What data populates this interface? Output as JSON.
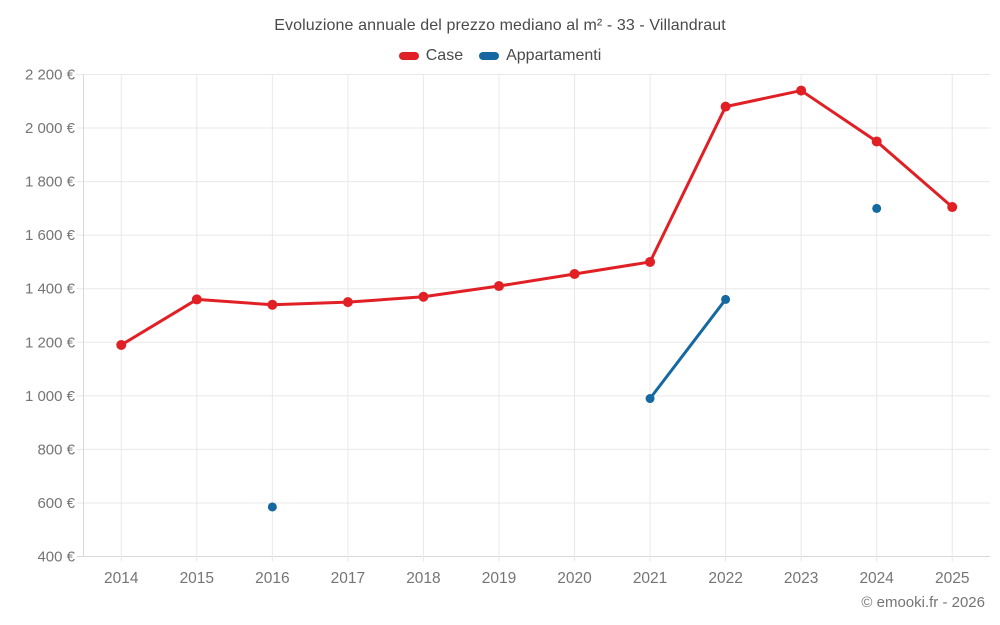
{
  "chart_data": {
    "type": "line",
    "title": "Evoluzione annuale del prezzo mediano al m² - 33 - Villandraut",
    "footer": "© emooki.fr - 2026",
    "categories": [
      "2014",
      "2015",
      "2016",
      "2017",
      "2018",
      "2019",
      "2020",
      "2021",
      "2022",
      "2023",
      "2024",
      "2025"
    ],
    "series": [
      {
        "name": "Case",
        "color": "#e12026",
        "marker_radius": 5,
        "values": [
          1190,
          1360,
          1340,
          1350,
          1370,
          1410,
          1455,
          1500,
          2080,
          2140,
          1950,
          1705
        ]
      },
      {
        "name": "Appartamenti",
        "color": "#1569a0",
        "marker_radius": 4.5,
        "values": [
          null,
          null,
          585,
          null,
          null,
          null,
          null,
          990,
          1360,
          null,
          1700,
          null
        ]
      }
    ],
    "xlabel": "",
    "ylabel": "",
    "ylim": [
      400,
      2200
    ],
    "y_ticks": [
      400,
      600,
      800,
      1000,
      1200,
      1400,
      1600,
      1800,
      2000,
      2200
    ],
    "y_tick_labels": [
      "400 €",
      "600 €",
      "800 €",
      "1 000 €",
      "1 200 €",
      "1 400 €",
      "1 600 €",
      "1 800 €",
      "2 000 €",
      "2 200 €"
    ],
    "grid": true,
    "legend_position": "top"
  },
  "colors": {
    "background": "#ffffff",
    "grid": "#e8e8e8",
    "axis": "#d8d8d8",
    "axis_label": "#757575",
    "title": "#4a4a4a",
    "footer": "#757575"
  }
}
